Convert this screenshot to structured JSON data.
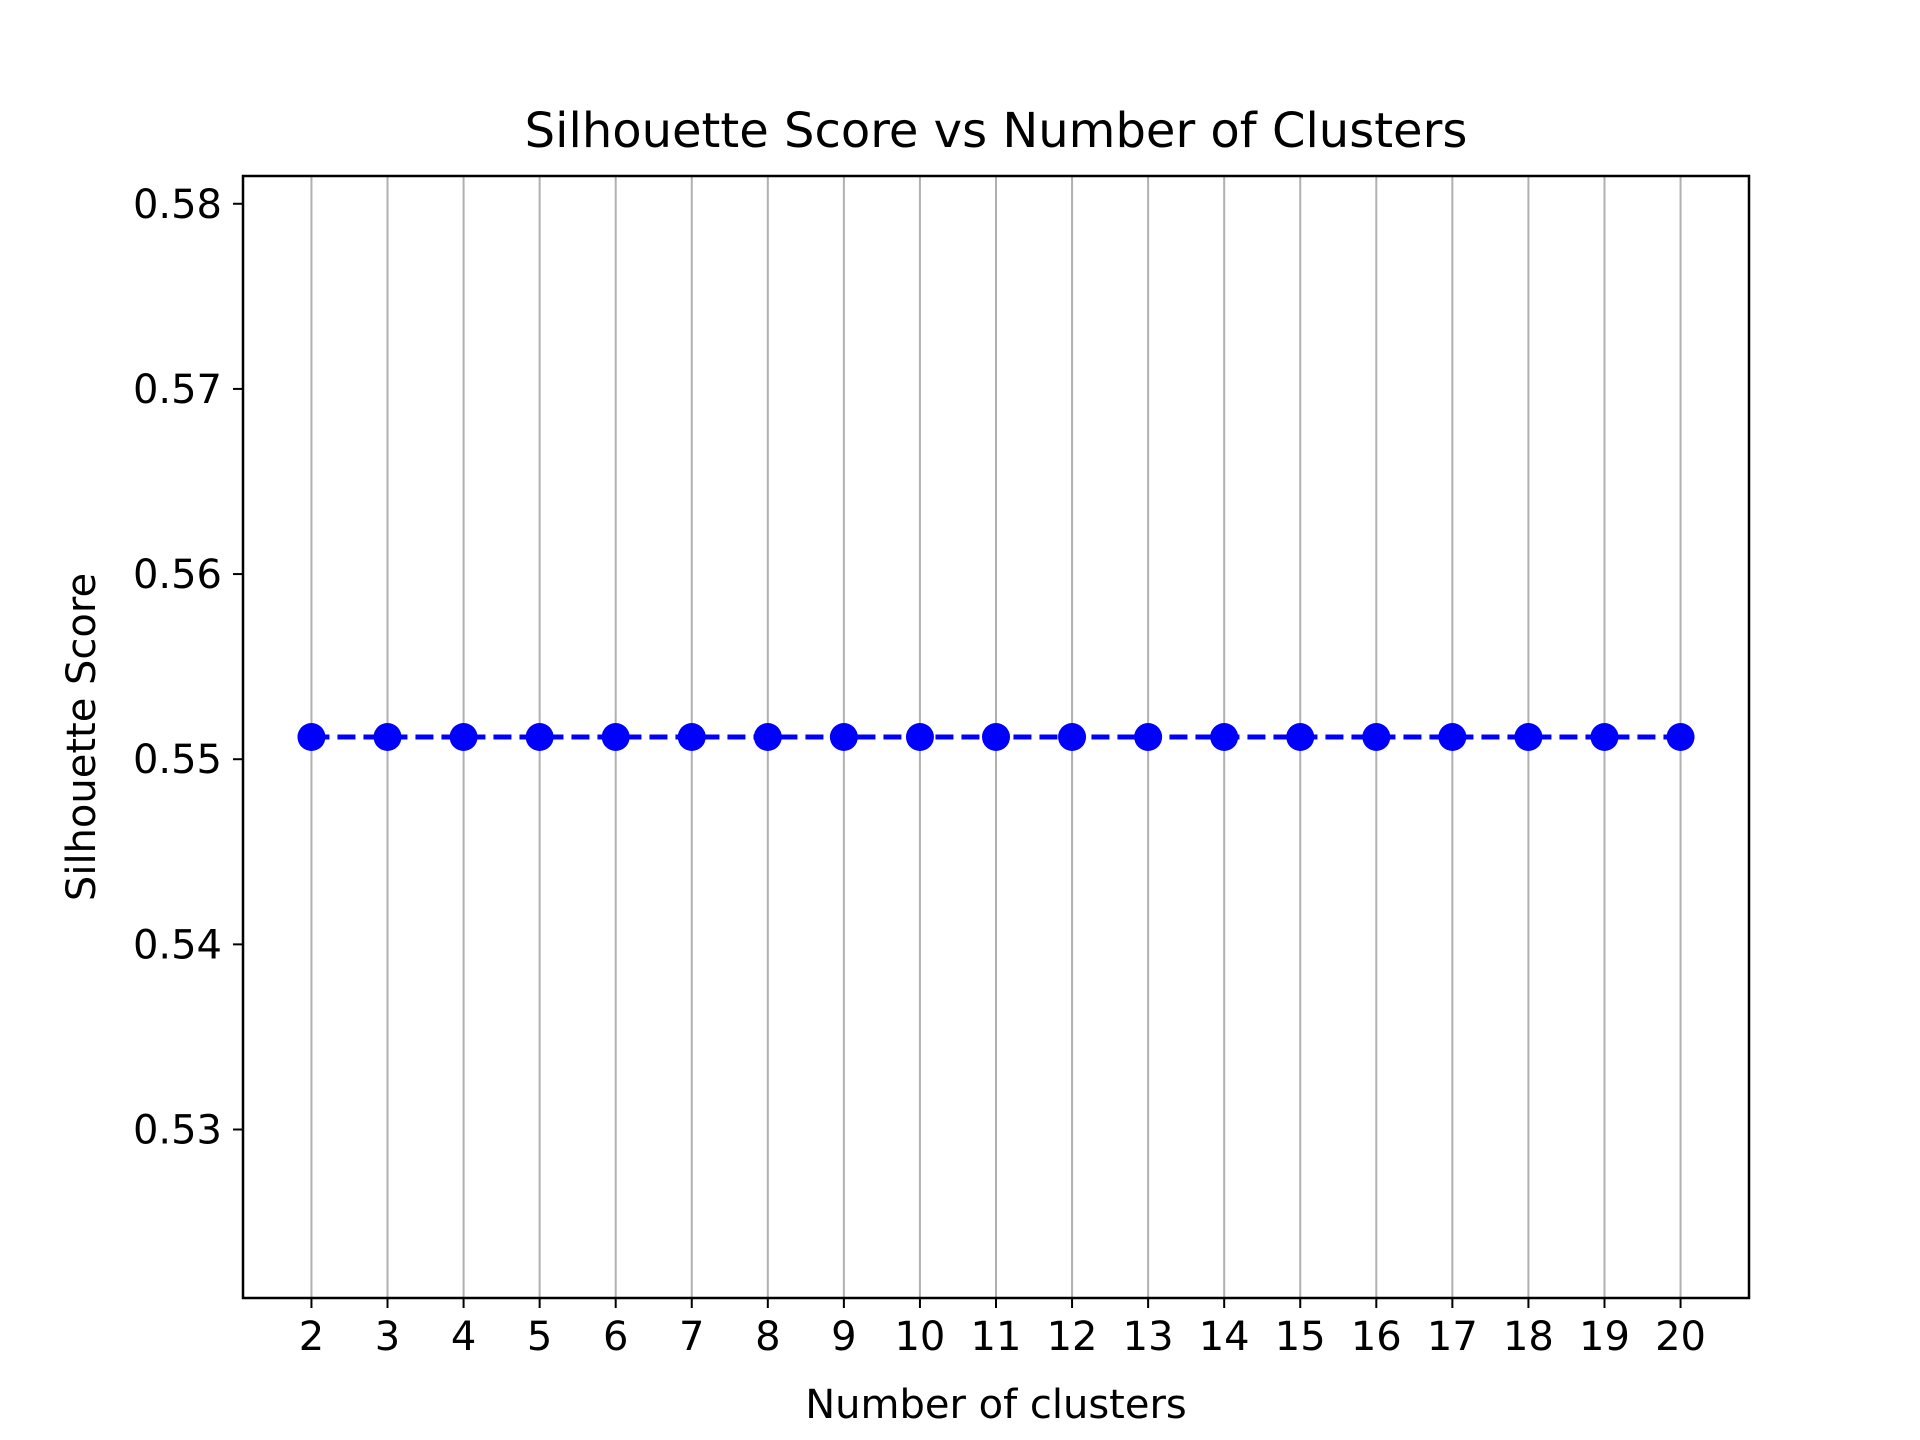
{
  "chart_data": {
    "type": "line",
    "title": "Silhouette Score vs Number of Clusters",
    "xlabel": "Number of clusters",
    "ylabel": "Silhouette Score",
    "x": [
      2,
      3,
      4,
      5,
      6,
      7,
      8,
      9,
      10,
      11,
      12,
      13,
      14,
      15,
      16,
      17,
      18,
      19,
      20
    ],
    "series": [
      {
        "values": [
          0.5512,
          0.5512,
          0.5512,
          0.5512,
          0.5512,
          0.5512,
          0.5512,
          0.5512,
          0.5512,
          0.5512,
          0.5512,
          0.5512,
          0.5512,
          0.5512,
          0.5512,
          0.5512,
          0.5512,
          0.5512,
          0.5512
        ],
        "color": "#0000ff",
        "line_style": "dashed",
        "marker": "circle"
      }
    ],
    "xticks": [
      "2",
      "3",
      "4",
      "5",
      "6",
      "7",
      "8",
      "9",
      "10",
      "11",
      "12",
      "13",
      "14",
      "15",
      "16",
      "17",
      "18",
      "19",
      "20"
    ],
    "yticks": [
      {
        "value": 0.53,
        "label": "0.53"
      },
      {
        "value": 0.54,
        "label": "0.54"
      },
      {
        "value": 0.55,
        "label": "0.55"
      },
      {
        "value": 0.56,
        "label": "0.56"
      },
      {
        "value": 0.57,
        "label": "0.57"
      },
      {
        "value": 0.58,
        "label": "0.58"
      }
    ],
    "xlim": [
      1.1,
      20.9
    ],
    "ylim": [
      0.5209,
      0.5815
    ],
    "grid": "vertical",
    "grid_color": "#b0b0b0",
    "legend": "none"
  }
}
